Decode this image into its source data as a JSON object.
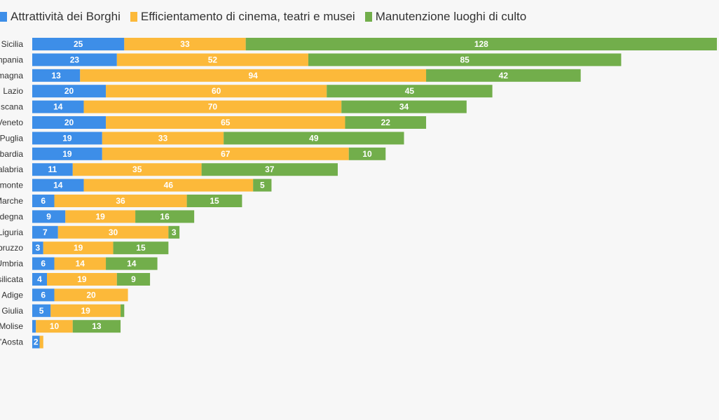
{
  "chart_data": {
    "type": "bar",
    "orientation": "horizontal",
    "stacked": true,
    "legend_position": "top-left",
    "grid": false,
    "colors": [
      "#3d8ee8",
      "#fcb93a",
      "#72ae4b"
    ],
    "categories": [
      "Sicilia",
      "mpania",
      "magna",
      "Lazio",
      "scana",
      "Veneto",
      "Puglia",
      "bardia",
      "alabria",
      "monte",
      "Marche",
      "degna",
      "Liguria",
      "bruzzo",
      "Umbria",
      "silicata",
      "Adige",
      "Giulia",
      "Molise",
      "'Aosta"
    ],
    "series": [
      {
        "name": "Attrattività dei Borghi",
        "values": [
          25,
          23,
          13,
          20,
          14,
          20,
          19,
          19,
          11,
          14,
          6,
          9,
          7,
          3,
          6,
          4,
          6,
          5,
          1,
          2
        ]
      },
      {
        "name": "Efficientamento di cinema, teatri e musei",
        "values": [
          33,
          52,
          94,
          60,
          70,
          65,
          33,
          67,
          35,
          46,
          36,
          19,
          30,
          19,
          14,
          19,
          20,
          19,
          10,
          1
        ]
      },
      {
        "name": "Manutenzione luoghi di culto",
        "values": [
          128,
          85,
          42,
          45,
          34,
          22,
          49,
          10,
          37,
          5,
          15,
          16,
          3,
          15,
          14,
          9,
          0,
          1,
          13,
          0
        ]
      }
    ],
    "visible_value_labels": [
      [
        25,
        23,
        13,
        20,
        14,
        20,
        19,
        19,
        11,
        14,
        6,
        9,
        7,
        3,
        6,
        4,
        6,
        5,
        null,
        2
      ],
      [
        33,
        52,
        94,
        60,
        70,
        65,
        33,
        67,
        35,
        46,
        36,
        19,
        30,
        19,
        14,
        19,
        20,
        19,
        10,
        null
      ],
      [
        128,
        85,
        42,
        45,
        34,
        22,
        49,
        10,
        37,
        5,
        15,
        16,
        3,
        15,
        14,
        9,
        null,
        null,
        13,
        null
      ]
    ],
    "xlim": [
      0,
      186
    ]
  }
}
